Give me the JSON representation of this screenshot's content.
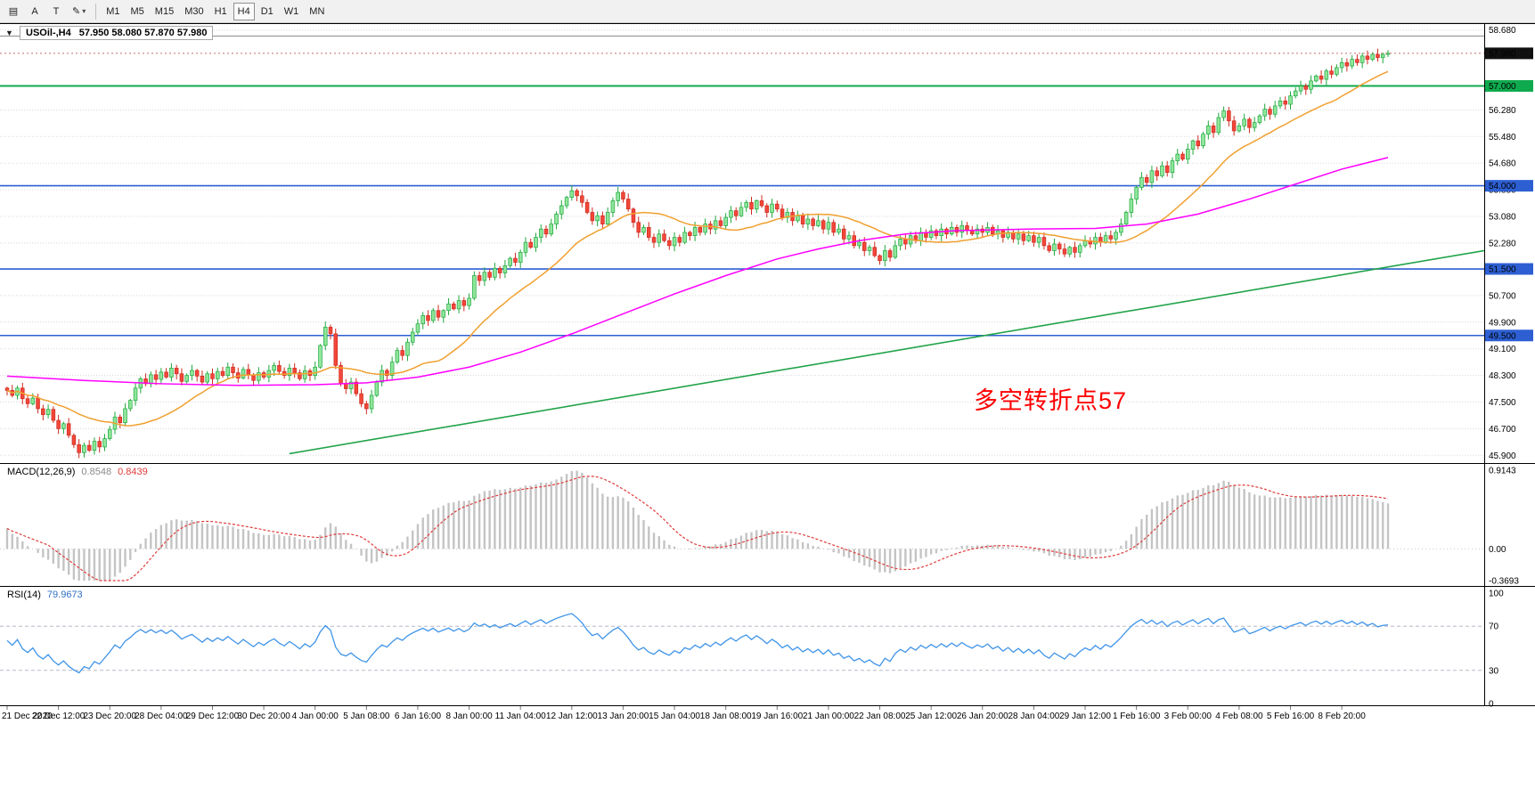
{
  "toolbar": {
    "icon_buttons": [
      {
        "name": "charts-grid-icon",
        "glyph": "▤",
        "dropdown": false
      },
      {
        "name": "cursor-a-tool",
        "glyph": "A",
        "dropdown": false
      },
      {
        "name": "text-tool",
        "glyph": "T",
        "dropdown": false
      },
      {
        "name": "draw-tool",
        "glyph": "✎",
        "dropdown": true
      }
    ],
    "timeframes": [
      {
        "label": "M1",
        "active": false
      },
      {
        "label": "M5",
        "active": false
      },
      {
        "label": "M15",
        "active": false
      },
      {
        "label": "M30",
        "active": false
      },
      {
        "label": "H1",
        "active": false
      },
      {
        "label": "H4",
        "active": true
      },
      {
        "label": "D1",
        "active": false
      },
      {
        "label": "W1",
        "active": false
      },
      {
        "label": "MN",
        "active": false
      }
    ]
  },
  "header": {
    "collapse_arrow": "▼",
    "symbol_period": "USOil-,H4",
    "ohlc": "57.950 58.080 57.870 57.980"
  },
  "annotation": {
    "text": "多空转折点57",
    "color": "#ff0000"
  },
  "chart_data": {
    "type": "candlestick",
    "symbol": "USOil-",
    "period": "H4",
    "bars_per_label": 10,
    "x_labels": [
      "21 Dec 2020",
      "22 Dec 12:00",
      "23 Dec 20:00",
      "28 Dec 04:00",
      "29 Dec 12:00",
      "30 Dec 20:00",
      "4 Jan 00:00",
      "5 Jan 08:00",
      "6 Jan 16:00",
      "8 Jan 00:00",
      "11 Jan 04:00",
      "12 Jan 12:00",
      "13 Jan 20:00",
      "15 Jan 04:00",
      "18 Jan 08:00",
      "19 Jan 16:00",
      "21 Jan 00:00",
      "22 Jan 08:00",
      "25 Jan 12:00",
      "26 Jan 20:00",
      "28 Jan 04:00",
      "29 Jan 12:00",
      "1 Feb 16:00",
      "3 Feb 00:00",
      "4 Feb 08:00",
      "5 Feb 16:00",
      "8 Feb 20:00"
    ],
    "closes": [
      47.85,
      47.7,
      47.92,
      47.6,
      47.45,
      47.62,
      47.3,
      47.12,
      47.28,
      46.95,
      46.7,
      46.85,
      46.5,
      46.22,
      45.98,
      46.2,
      46.05,
      46.32,
      46.15,
      46.4,
      46.68,
      47.05,
      46.88,
      47.3,
      47.55,
      47.92,
      48.2,
      48.05,
      48.32,
      48.18,
      48.4,
      48.25,
      48.52,
      48.35,
      48.12,
      48.3,
      48.45,
      48.28,
      48.1,
      48.35,
      48.2,
      48.42,
      48.3,
      48.55,
      48.38,
      48.22,
      48.48,
      48.32,
      48.15,
      48.38,
      48.25,
      48.45,
      48.6,
      48.42,
      48.3,
      48.52,
      48.38,
      48.2,
      48.44,
      48.3,
      48.55,
      49.2,
      49.75,
      49.55,
      48.6,
      48.05,
      47.9,
      48.1,
      47.75,
      47.45,
      47.3,
      47.7,
      48.1,
      48.45,
      48.3,
      48.7,
      49.05,
      48.9,
      49.3,
      49.6,
      49.85,
      50.1,
      49.95,
      50.25,
      50.05,
      50.25,
      50.45,
      50.3,
      50.55,
      50.4,
      50.62,
      51.3,
      51.15,
      51.4,
      51.25,
      51.52,
      51.38,
      51.6,
      51.82,
      51.7,
      52.0,
      52.3,
      52.15,
      52.45,
      52.7,
      52.55,
      52.85,
      53.15,
      53.4,
      53.65,
      53.85,
      53.7,
      53.5,
      53.2,
      52.95,
      53.1,
      52.85,
      53.2,
      53.55,
      53.8,
      53.6,
      53.3,
      52.9,
      52.6,
      52.75,
      52.45,
      52.3,
      52.55,
      52.35,
      52.2,
      52.45,
      52.3,
      52.6,
      52.5,
      52.75,
      52.6,
      52.85,
      52.7,
      52.95,
      52.8,
      53.05,
      53.25,
      53.1,
      53.35,
      53.5,
      53.3,
      53.55,
      53.4,
      53.2,
      53.45,
      53.3,
      53.05,
      53.2,
      52.95,
      53.1,
      52.85,
      53.0,
      52.8,
      52.95,
      52.7,
      52.9,
      52.6,
      52.7,
      52.4,
      52.5,
      52.2,
      52.3,
      52.05,
      52.15,
      51.9,
      51.75,
      52.05,
      51.85,
      52.2,
      52.4,
      52.25,
      52.5,
      52.35,
      52.6,
      52.45,
      52.65,
      52.5,
      52.7,
      52.55,
      52.75,
      52.6,
      52.8,
      52.65,
      52.55,
      52.7,
      52.6,
      52.75,
      52.55,
      52.65,
      52.45,
      52.6,
      52.4,
      52.55,
      52.35,
      52.5,
      52.3,
      52.45,
      52.2,
      52.05,
      52.25,
      52.1,
      51.95,
      52.15,
      52.0,
      52.2,
      52.35,
      52.25,
      52.45,
      52.3,
      52.5,
      52.4,
      52.6,
      52.85,
      53.2,
      53.6,
      53.95,
      54.25,
      54.1,
      54.45,
      54.3,
      54.6,
      54.4,
      54.75,
      54.95,
      54.8,
      55.1,
      55.35,
      55.2,
      55.55,
      55.8,
      55.6,
      56.05,
      56.25,
      55.95,
      55.65,
      55.8,
      56.0,
      55.75,
      55.9,
      56.1,
      56.3,
      56.15,
      56.4,
      56.55,
      56.45,
      56.7,
      56.85,
      57.0,
      56.9,
      57.15,
      57.3,
      57.2,
      57.45,
      57.35,
      57.55,
      57.7,
      57.6,
      57.8,
      57.7,
      57.9,
      57.8,
      57.95,
      57.85,
      57.95,
      57.98
    ],
    "last_bar_ohlc": [
      57.95,
      58.08,
      57.87,
      57.98
    ],
    "price_range": {
      "min": 45.72,
      "max": 58.78
    },
    "price_axis_labels": [
      "58.680",
      "56.280",
      "55.480",
      "54.680",
      "53.880",
      "53.080",
      "52.280",
      "50.700",
      "49.900",
      "49.100",
      "48.300",
      "47.500",
      "46.700",
      "45.900"
    ],
    "current_price": {
      "value": 57.98,
      "label": "57.980",
      "badge_color": "#111111"
    },
    "horizontal_levels": [
      {
        "price": 58.5,
        "color": "#8c8c8c",
        "width": 1,
        "badge": false,
        "label": ""
      },
      {
        "price": 57.0,
        "color": "#0faa4e",
        "width": 2,
        "badge": true,
        "label": "57.000"
      },
      {
        "price": 54.0,
        "color": "#2d5fd3",
        "width": 1.6,
        "badge": true,
        "label": "54.000"
      },
      {
        "price": 51.5,
        "color": "#2d5fd3",
        "width": 1.6,
        "badge": true,
        "label": "51.500"
      },
      {
        "price": 49.5,
        "color": "#2d5fd3",
        "width": 1.6,
        "badge": true,
        "label": "49.500"
      }
    ],
    "candle_colors": {
      "up_fill": "#90e69c",
      "up_stroke": "#1ea83c",
      "down_fill": "#f2473a",
      "down_stroke": "#cf2a1e"
    },
    "moving_averages": {
      "fast": {
        "type": "sma",
        "period": 21,
        "color": "#f0a030"
      },
      "slow": {
        "color": "#ff00ff",
        "waypoints": [
          [
            0,
            48.28
          ],
          [
            15,
            48.15
          ],
          [
            30,
            48.05
          ],
          [
            45,
            48.0
          ],
          [
            60,
            48.02
          ],
          [
            70,
            48.08
          ],
          [
            80,
            48.25
          ],
          [
            90,
            48.55
          ],
          [
            100,
            49.0
          ],
          [
            110,
            49.55
          ],
          [
            120,
            50.15
          ],
          [
            130,
            50.75
          ],
          [
            140,
            51.3
          ],
          [
            150,
            51.8
          ],
          [
            158,
            52.1
          ],
          [
            166,
            52.35
          ],
          [
            175,
            52.55
          ],
          [
            185,
            52.65
          ],
          [
            200,
            52.7
          ],
          [
            212,
            52.72
          ],
          [
            222,
            52.85
          ],
          [
            232,
            53.15
          ],
          [
            242,
            53.6
          ],
          [
            252,
            54.1
          ],
          [
            260,
            54.5
          ],
          [
            269,
            54.85
          ]
        ]
      }
    },
    "trendline": {
      "color": "#21a34a",
      "points": [
        [
          55,
          45.95
        ],
        [
          288,
          52.05
        ]
      ]
    },
    "indicators": {
      "macd": {
        "label": "MACD(12,26,9)",
        "fast": 12,
        "slow": 26,
        "signal": 9,
        "value_main": "0.8548",
        "value_signal": "0.8439",
        "axis_labels": [
          "0.9143",
          "0.00",
          "-0.3693"
        ],
        "histogram_color": "#c4c4c4",
        "signal_color": "#e03b3b"
      },
      "rsi": {
        "label": "RSI(14)",
        "period": 14,
        "value": "79.9673",
        "axis_labels": [
          "100",
          "70",
          "30",
          "0"
        ],
        "levels": [
          70,
          30
        ],
        "line_color": "#3f94e8"
      }
    }
  }
}
